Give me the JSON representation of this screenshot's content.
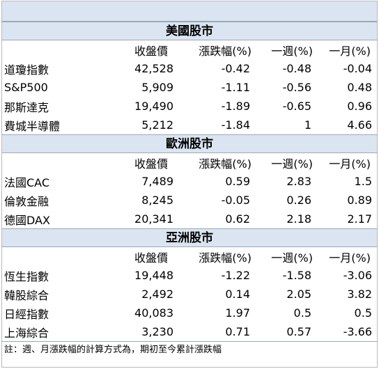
{
  "columns": [
    "收盤價",
    "漲跌幅(%)",
    "一週(%)",
    "一月(%)"
  ],
  "sections": [
    {
      "title": "美國股市",
      "rows": [
        [
          "道瓊指數",
          "42,528",
          "-0.42",
          "-0.48",
          "-0.04"
        ],
        [
          "S&P500",
          "5,909",
          "-1.11",
          "-0.56",
          "0.48"
        ],
        [
          "那斯達克",
          "19,490",
          "-1.89",
          "-0.65",
          "0.96"
        ],
        [
          "費城半導體",
          "5,212",
          "-1.84",
          "1",
          "4.66"
        ]
      ]
    },
    {
      "title": "歐洲股市",
      "rows": [
        [
          "法國CAC",
          "7,489",
          "0.59",
          "2.83",
          "1.5"
        ],
        [
          "倫敦金融",
          "8,245",
          "-0.05",
          "0.26",
          "0.89"
        ],
        [
          "德國DAX",
          "20,341",
          "0.62",
          "2.18",
          "2.17"
        ]
      ]
    },
    {
      "title": "亞洲股市",
      "rows": [
        [
          "恆生指數",
          "19,448",
          "-1.22",
          "-1.58",
          "-3.06"
        ],
        [
          "韓股綜合",
          "2,492",
          "0.14",
          "2.05",
          "3.82"
        ],
        [
          "日經指數",
          "40,083",
          "1.97",
          "0.5",
          "0.5"
        ],
        [
          "上海綜合",
          "3,230",
          "0.71",
          "0.57",
          "-3.66"
        ]
      ]
    }
  ],
  "footnote": "註：週、月漲跌幅的計算方式為，期初至今累計漲跌幅",
  "colors": {
    "header_bg": "#dbe5f1",
    "border": "#9aa8b8"
  }
}
